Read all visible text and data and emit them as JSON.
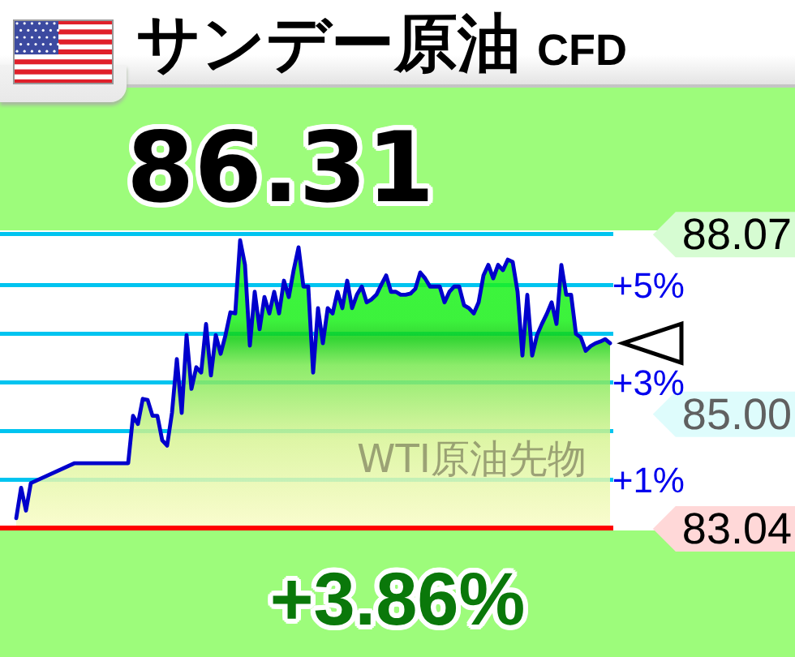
{
  "chart_data": {
    "type": "area",
    "title": "サンデー原油",
    "subtitle": "CFD",
    "annotations": [
      "86.31",
      "+3.86%",
      "WTI原油先物"
    ],
    "categories": [
      null,
      null,
      null,
      null,
      null,
      null,
      null,
      null,
      null,
      null,
      null,
      null,
      null,
      null,
      null,
      null,
      null,
      null,
      null,
      null,
      null,
      null,
      null,
      null,
      null,
      null,
      null,
      null,
      null,
      null,
      null,
      null,
      null,
      null,
      null,
      null,
      null,
      null,
      null,
      null,
      null,
      null,
      null,
      null,
      null,
      null,
      null,
      null,
      null,
      null,
      null,
      null,
      null,
      null,
      null,
      null,
      null,
      null,
      null,
      null,
      null,
      null,
      null,
      null,
      null,
      null,
      null,
      null,
      null,
      null,
      null,
      null,
      null,
      null,
      null,
      null,
      null,
      null,
      null,
      null,
      null,
      null,
      null,
      null,
      null,
      null,
      null,
      null,
      null,
      null,
      null,
      null,
      null,
      null,
      null,
      null,
      null,
      null,
      null,
      null,
      null,
      null,
      null,
      null,
      null,
      null,
      null,
      null,
      null,
      null,
      null,
      null,
      null,
      null,
      null,
      null,
      null,
      null,
      null,
      null,
      null,
      null,
      null
    ],
    "values": [
      83.21,
      83.73,
      83.34,
      83.81,
      null,
      null,
      null,
      null,
      null,
      null,
      null,
      null,
      84.15,
      null,
      null,
      null,
      null,
      null,
      null,
      null,
      null,
      84.15,
      84.15,
      84.15,
      84.96,
      84.82,
      85.25,
      85.23,
      84.96,
      84.96,
      84.54,
      84.45,
      85.01,
      85.93,
      85.01,
      86.34,
      85.42,
      85.79,
      85.7,
      86.53,
      85.65,
      86.34,
      86.02,
      86.34,
      86.73,
      86.71,
      87.96,
      87.54,
      86.16,
      87.08,
      86.44,
      86.99,
      86.71,
      87.08,
      86.71,
      87.27,
      86.99,
      87.45,
      87.84,
      87.17,
      87.17,
      85.7,
      86.8,
      86.2,
      86.8,
      86.71,
      87.08,
      86.8,
      87.27,
      86.8,
      87.03,
      87.17,
      86.9,
      86.95,
      87.03,
      87.2,
      87.36,
      87.08,
      87.08,
      87.03,
      87.03,
      87.05,
      87.13,
      87.41,
      87.31,
      87.17,
      87.17,
      87.17,
      86.9,
      87.08,
      87.17,
      87.17,
      86.85,
      86.8,
      86.71,
      86.9,
      87.36,
      87.54,
      87.31,
      87.54,
      87.45,
      87.63,
      87.59,
      87.08,
      85.99,
      87.03,
      85.99,
      86.34,
      86.53,
      86.7,
      86.9,
      86.53,
      87.54,
      87.03,
      87.03,
      86.36,
      86.3,
      86.07,
      86.15,
      86.2,
      86.23,
      86.27,
      86.2
    ],
    "color": "#0000cc",
    "ylim": [
      83.0,
      88.13
    ],
    "yticks": [
      83.04,
      {
        "value": 85,
        "label": "85.00"
      },
      88.07
    ],
    "y2lim": [
      -0.05,
      6.13
    ],
    "y2ticks": [
      {
        "value": 1,
        "label": "+1%"
      },
      {
        "value": 2,
        "label": null
      },
      {
        "value": 3,
        "label": "+3%"
      },
      {
        "value": 4,
        "label": null
      },
      {
        "value": 5,
        "label": "+5%"
      },
      {
        "value": 6.06,
        "label": null
      }
    ],
    "ref_lines": [
      {
        "axis": "y",
        "value": 83.04,
        "color": "#ff0000"
      }
    ],
    "grid": "y",
    "tick_labels": "y"
  }
}
